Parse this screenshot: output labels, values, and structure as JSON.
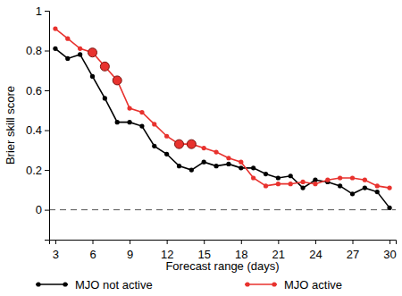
{
  "chart_data": {
    "type": "line",
    "x_label": "Forecast range (days)",
    "y_label": "Brier skill score",
    "x": [
      3,
      4,
      5,
      6,
      7,
      8,
      9,
      10,
      11,
      12,
      13,
      14,
      15,
      16,
      17,
      18,
      19,
      20,
      21,
      22,
      23,
      24,
      25,
      26,
      27,
      28,
      29,
      30
    ],
    "series": [
      {
        "name": "MJO not active",
        "color": "#000000",
        "marker": "circle",
        "values": [
          0.81,
          0.76,
          0.78,
          0.67,
          0.56,
          0.44,
          0.44,
          0.42,
          0.32,
          0.28,
          0.22,
          0.2,
          0.24,
          0.22,
          0.23,
          0.21,
          0.21,
          0.18,
          0.16,
          0.17,
          0.11,
          0.15,
          0.14,
          0.12,
          0.08,
          0.11,
          0.09,
          0.01
        ]
      },
      {
        "name": "MJO active",
        "color": "#e8322e",
        "marker": "circle",
        "values": [
          0.91,
          0.86,
          0.81,
          0.79,
          0.72,
          0.65,
          0.51,
          0.49,
          0.43,
          0.37,
          0.33,
          0.33,
          0.31,
          0.29,
          0.26,
          0.24,
          0.16,
          0.12,
          0.13,
          0.13,
          0.14,
          0.13,
          0.15,
          0.16,
          0.16,
          0.15,
          0.12,
          0.11
        ],
        "significant": [
          false,
          false,
          false,
          true,
          true,
          true,
          false,
          false,
          false,
          false,
          true,
          true,
          false,
          false,
          false,
          false,
          false,
          false,
          false,
          false,
          false,
          false,
          false,
          false,
          false,
          false,
          false,
          false
        ]
      }
    ],
    "xlim": [
      2.5,
      30.5
    ],
    "ylim": [
      -0.15,
      1
    ],
    "xticks": [
      3,
      6,
      9,
      12,
      15,
      18,
      21,
      24,
      27,
      30
    ],
    "yticks": [
      0,
      0.2,
      0.4,
      0.6,
      0.8,
      1
    ],
    "grid": false,
    "legend": "bottom"
  }
}
